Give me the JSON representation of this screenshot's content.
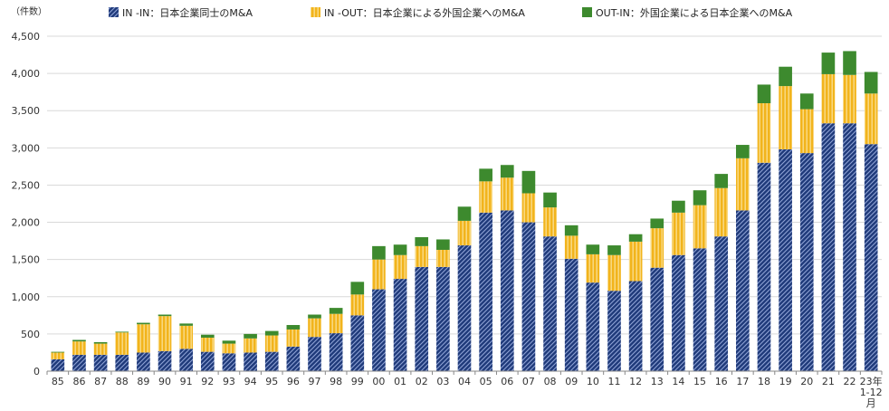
{
  "chart_data": {
    "type": "bar",
    "stacked": true,
    "y_unit_label": "（件数）",
    "ylim": [
      0,
      4500
    ],
    "yticks": [
      "0",
      "500",
      "1,000",
      "1,500",
      "2,000",
      "2,500",
      "3,000",
      "3,500",
      "4,000",
      "4,500"
    ],
    "ytick_values": [
      0,
      500,
      1000,
      1500,
      2000,
      2500,
      3000,
      3500,
      4000,
      4500
    ],
    "grid": true,
    "legend_position": "top",
    "categories": [
      "85",
      "86",
      "87",
      "88",
      "89",
      "90",
      "91",
      "92",
      "93",
      "94",
      "95",
      "96",
      "97",
      "98",
      "99",
      "00",
      "01",
      "02",
      "03",
      "04",
      "05",
      "06",
      "07",
      "08",
      "09",
      "10",
      "11",
      "12",
      "13",
      "14",
      "15",
      "16",
      "17",
      "18",
      "19",
      "20",
      "21",
      "22",
      "23年 1-12 月"
    ],
    "category_lines": [
      [
        "85"
      ],
      [
        "86"
      ],
      [
        "87"
      ],
      [
        "88"
      ],
      [
        "89"
      ],
      [
        "90"
      ],
      [
        "91"
      ],
      [
        "92"
      ],
      [
        "93"
      ],
      [
        "94"
      ],
      [
        "95"
      ],
      [
        "96"
      ],
      [
        "97"
      ],
      [
        "98"
      ],
      [
        "99"
      ],
      [
        "00"
      ],
      [
        "01"
      ],
      [
        "02"
      ],
      [
        "03"
      ],
      [
        "04"
      ],
      [
        "05"
      ],
      [
        "06"
      ],
      [
        "07"
      ],
      [
        "08"
      ],
      [
        "09"
      ],
      [
        "10"
      ],
      [
        "11"
      ],
      [
        "12"
      ],
      [
        "13"
      ],
      [
        "14"
      ],
      [
        "15"
      ],
      [
        "16"
      ],
      [
        "17"
      ],
      [
        "18"
      ],
      [
        "19"
      ],
      [
        "20"
      ],
      [
        "21"
      ],
      [
        "22"
      ],
      [
        "23年",
        "1-12",
        "月"
      ]
    ],
    "series": [
      {
        "name": "IN -IN：日本企業同士のM&A",
        "color": "#1f3a7a",
        "pattern": "hatched-diagonal",
        "values": [
          160,
          220,
          220,
          220,
          250,
          270,
          300,
          260,
          240,
          250,
          260,
          330,
          460,
          510,
          750,
          1100,
          1240,
          1400,
          1400,
          1690,
          2130,
          2160,
          2000,
          1810,
          1510,
          1190,
          1080,
          1210,
          1390,
          1560,
          1650,
          1810,
          2160,
          2800,
          2980,
          2930,
          3330,
          3330,
          3050
        ]
      },
      {
        "name": "IN -OUT：日本企業による外国企業へのM&A",
        "color": "#f2b41c",
        "pattern": "vertical-stripes",
        "values": [
          90,
          180,
          150,
          300,
          380,
          470,
          310,
          190,
          130,
          190,
          220,
          230,
          250,
          260,
          280,
          400,
          320,
          280,
          230,
          330,
          420,
          440,
          390,
          390,
          310,
          380,
          480,
          530,
          530,
          570,
          580,
          650,
          700,
          800,
          850,
          590,
          660,
          650,
          680
        ]
      },
      {
        "name": "OUT-IN：外国企業による日本企業へのM&A",
        "color": "#3d8a2e",
        "pattern": "solid",
        "values": [
          10,
          20,
          20,
          10,
          20,
          20,
          30,
          40,
          40,
          60,
          60,
          60,
          50,
          80,
          170,
          180,
          140,
          120,
          140,
          190,
          170,
          170,
          300,
          200,
          140,
          130,
          130,
          100,
          130,
          160,
          200,
          190,
          180,
          250,
          260,
          210,
          290,
          320,
          290
        ]
      }
    ]
  }
}
